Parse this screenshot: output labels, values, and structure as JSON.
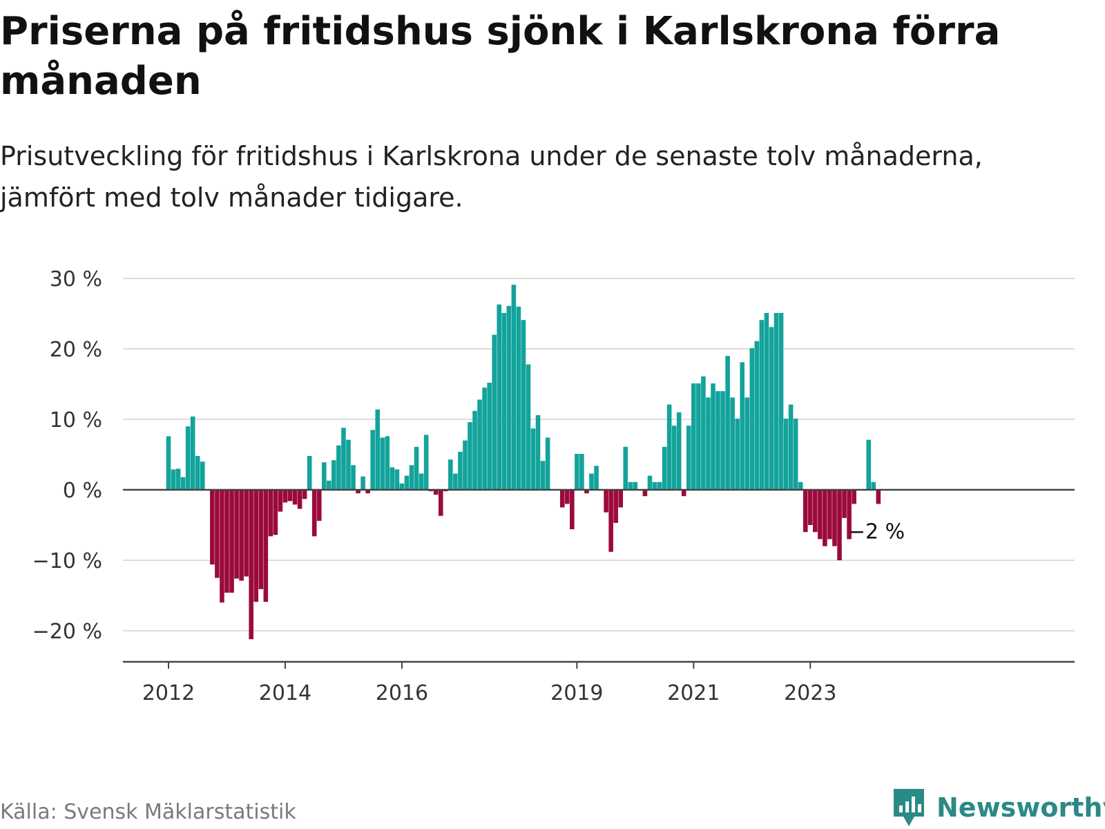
{
  "title": "Priserna på fritidshus sjönk i Karlskrona förra månaden",
  "subtitle": "Prisutveckling för fritidshus i Karlskrona under de senaste tolv månaderna, jämfört med tolv månader tidigare.",
  "source": "Källa: Svensk Mäklarstatistik",
  "brand": "Newsworthy",
  "colors": {
    "positive": "#13a39b",
    "negative": "#9b0a3c",
    "grid": "#dddddd",
    "axis": "#444444",
    "brand": "#2a8a86"
  },
  "chart_data": {
    "type": "bar",
    "x_start": "2012-01",
    "frequency": "monthly",
    "values": [
      7.6,
      2.9,
      3.0,
      1.8,
      9.0,
      10.4,
      4.8,
      4.0,
      0,
      -10.6,
      -12.5,
      -16.0,
      -14.6,
      -14.6,
      -12.6,
      -12.9,
      -12.3,
      -21.2,
      -15.9,
      -14.1,
      -15.9,
      -6.6,
      -6.4,
      -3.1,
      -1.8,
      -1.6,
      -2.1,
      -2.7,
      -1.3,
      4.8,
      -6.6,
      -4.4,
      3.9,
      1.3,
      4.2,
      6.3,
      8.8,
      7.1,
      3.5,
      -0.5,
      1.9,
      -0.5,
      8.5,
      11.4,
      7.4,
      7.6,
      3.2,
      2.9,
      0.9,
      2.0,
      3.5,
      6.1,
      2.3,
      7.8,
      -0.2,
      -0.7,
      -3.7,
      -0.2,
      4.3,
      2.3,
      5.4,
      7.0,
      9.6,
      11.2,
      12.8,
      14.5,
      15.2,
      22.0,
      26.3,
      25.1,
      26.1,
      29.1,
      26.0,
      24.1,
      17.8,
      8.7,
      10.6,
      4.1,
      7.4,
      0,
      0,
      -2.5,
      -2.0,
      -5.6,
      5.1,
      5.1,
      -0.5,
      2.3,
      3.4,
      0,
      -3.2,
      -8.8,
      -4.7,
      -2.5,
      6.1,
      1.1,
      1.1,
      0,
      -0.9,
      2.0,
      1.1,
      1.1,
      6.1,
      12.1,
      9.1,
      11.0,
      -0.9,
      9.1,
      15.1,
      15.1,
      16.1,
      13.1,
      15.1,
      14.0,
      14.0,
      19.0,
      13.1,
      10.1,
      18.1,
      13.1,
      20.1,
      21.1,
      24.1,
      25.1,
      23.1,
      25.1,
      25.1,
      10.1,
      12.1,
      10.1,
      1.1,
      -6.0,
      -5.0,
      -6.0,
      -7.0,
      -8.0,
      -7.0,
      -8.0,
      -10.0,
      -4.0,
      -7.0,
      -2.0,
      0,
      0,
      7.1,
      1.1,
      -2.0
    ],
    "x_ticks": [
      "2012",
      "2014",
      "2016",
      "2019",
      "2021",
      "2023"
    ],
    "y_ticks": [
      "30 %",
      "20 %",
      "10 %",
      "0 %",
      "−10 %",
      "−20 %"
    ],
    "ylim": [
      -24.5,
      30
    ],
    "annotation": "−2 %",
    "grid": true,
    "legend": "none"
  }
}
